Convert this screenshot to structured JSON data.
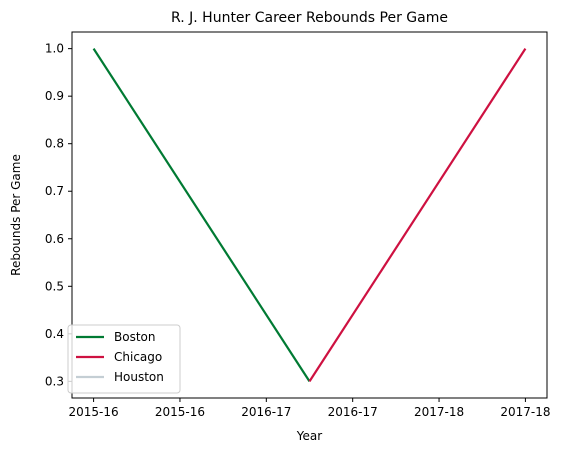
{
  "chart_data": {
    "type": "line",
    "title": "R. J. Hunter Career Rebounds Per Game",
    "xlabel": "Year",
    "ylabel": "Rebounds Per Game",
    "x_tick_labels": [
      "2015-16",
      "2015-16",
      "2016-17",
      "2016-17",
      "2017-18",
      "2017-18"
    ],
    "x_tick_positions": [
      0,
      0.5,
      1,
      1.5,
      2,
      2.5
    ],
    "xlim": [
      -0.125,
      2.625
    ],
    "ylim": [
      0.265,
      1.035
    ],
    "y_ticks": [
      0.3,
      0.4,
      0.5,
      0.6,
      0.7,
      0.8,
      0.9,
      1.0
    ],
    "y_tick_labels": [
      "0.3",
      "0.4",
      "0.5",
      "0.6",
      "0.7",
      "0.8",
      "0.9",
      "1.0"
    ],
    "grid": false,
    "legend_position": "lower-left",
    "series": [
      {
        "name": "Boston",
        "color": "#007A33",
        "points": [
          [
            0,
            1.0
          ],
          [
            1.25,
            0.3
          ]
        ]
      },
      {
        "name": "Chicago",
        "color": "#CE1141",
        "points": [
          [
            1.25,
            0.3
          ],
          [
            2.5,
            1.0
          ]
        ]
      },
      {
        "name": "Houston",
        "color": "#C4CED4",
        "points": []
      }
    ]
  }
}
